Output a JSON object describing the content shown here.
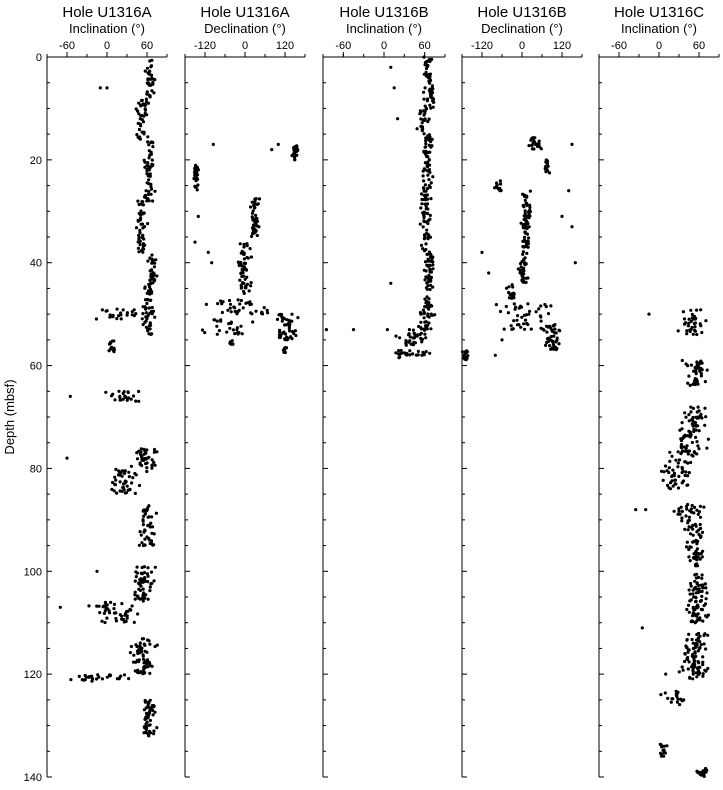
{
  "chart_data": {
    "type": "scatter",
    "ylabel": "Depth (mbsf)",
    "ylim": [
      0,
      140
    ],
    "yticks": [
      0,
      20,
      40,
      60,
      80,
      100,
      120,
      140
    ],
    "yticks_minor_step": 5,
    "panels": [
      {
        "hole": "Hole U1316A",
        "xlabel": "Inclination (°)",
        "xlim": [
          -90,
          90
        ],
        "xticks": [
          -60,
          0,
          60
        ],
        "segments": [
          {
            "d0": 0,
            "d1": 8,
            "center": 65,
            "spread": 10,
            "n": 34
          },
          {
            "d0": 8,
            "d1": 16,
            "center": 52,
            "spread": 12,
            "n": 40
          },
          {
            "d0": 16,
            "d1": 28,
            "center": 64,
            "spread": 11,
            "n": 55
          },
          {
            "d0": 28,
            "d1": 38,
            "center": 52,
            "spread": 12,
            "n": 45
          },
          {
            "d0": 38,
            "d1": 44,
            "center": 68,
            "spread": 10,
            "n": 30
          },
          {
            "d0": 44,
            "d1": 54,
            "center": 62,
            "spread": 12,
            "n": 50
          },
          {
            "d0": 49,
            "d1": 51,
            "center": 20,
            "spread": 55,
            "n": 22
          },
          {
            "d0": 55,
            "d1": 57.5,
            "center": 8,
            "spread": 8,
            "n": 12
          },
          {
            "d0": 65,
            "d1": 67,
            "center": 22,
            "spread": 32,
            "n": 24
          },
          {
            "d0": 76,
            "d1": 80,
            "center": 55,
            "spread": 25,
            "n": 40
          },
          {
            "d0": 80,
            "d1": 85,
            "center": 30,
            "spread": 35,
            "n": 45
          },
          {
            "d0": 87,
            "d1": 95,
            "center": 60,
            "spread": 20,
            "n": 45
          },
          {
            "d0": 99,
            "d1": 106,
            "center": 55,
            "spread": 22,
            "n": 55
          },
          {
            "d0": 106,
            "d1": 110,
            "center": 10,
            "spread": 60,
            "n": 45
          },
          {
            "d0": 113,
            "d1": 120,
            "center": 55,
            "spread": 25,
            "n": 65
          },
          {
            "d0": 120,
            "d1": 121.5,
            "center": -5,
            "spread": 60,
            "n": 30
          },
          {
            "d0": 125,
            "d1": 132,
            "center": 62,
            "spread": 14,
            "n": 50
          }
        ],
        "singles": [
          [
            -10,
            6
          ],
          [
            0,
            6
          ],
          [
            -60,
            78
          ],
          [
            -55,
            66
          ],
          [
            -70,
            107
          ],
          [
            -15,
            100
          ]
        ]
      },
      {
        "hole": "Hole U1316A",
        "xlabel": "Declination (°)",
        "xlim": [
          -180,
          180
        ],
        "xticks": [
          -120,
          0,
          120
        ],
        "segments": [
          {
            "d0": 17,
            "d1": 20,
            "center": 150,
            "spread": 12,
            "n": 22
          },
          {
            "d0": 21,
            "d1": 26,
            "center": -145,
            "spread": 12,
            "n": 28
          },
          {
            "d0": 27,
            "d1": 35,
            "center": 30,
            "spread": 18,
            "n": 45
          },
          {
            "d0": 36,
            "d1": 46,
            "center": 0,
            "spread": 25,
            "n": 55
          },
          {
            "d0": 47,
            "d1": 50,
            "center": 0,
            "spread": 160,
            "n": 35
          },
          {
            "d0": 50,
            "d1": 55,
            "center": 120,
            "spread": 45,
            "n": 45
          },
          {
            "d0": 51,
            "d1": 54,
            "center": -60,
            "spread": 110,
            "n": 25
          },
          {
            "d0": 55,
            "d1": 56,
            "center": -40,
            "spread": 12,
            "n": 6
          },
          {
            "d0": 56.5,
            "d1": 57.5,
            "center": 120,
            "spread": 10,
            "n": 8
          }
        ],
        "singles": [
          [
            -95,
            17
          ],
          [
            -140,
            31
          ],
          [
            -150,
            36
          ],
          [
            -100,
            40
          ],
          [
            -110,
            38
          ],
          [
            100,
            17
          ],
          [
            80,
            18
          ]
        ]
      },
      {
        "hole": "Hole U1316B",
        "xlabel": "Inclination (°)",
        "xlim": [
          -90,
          90
        ],
        "xticks": [
          -60,
          0,
          60
        ],
        "segments": [
          {
            "d0": 0,
            "d1": 5,
            "center": 65,
            "spread": 10,
            "n": 25
          },
          {
            "d0": 5,
            "d1": 10,
            "center": 68,
            "spread": 12,
            "n": 28
          },
          {
            "d0": 10,
            "d1": 15,
            "center": 58,
            "spread": 10,
            "n": 25
          },
          {
            "d0": 15,
            "d1": 25,
            "center": 65,
            "spread": 12,
            "n": 50
          },
          {
            "d0": 25,
            "d1": 38,
            "center": 60,
            "spread": 12,
            "n": 60
          },
          {
            "d0": 38,
            "d1": 48,
            "center": 66,
            "spread": 11,
            "n": 55
          },
          {
            "d0": 48,
            "d1": 53,
            "center": 62,
            "spread": 18,
            "n": 35
          },
          {
            "d0": 53,
            "d1": 58,
            "center": 45,
            "spread": 35,
            "n": 45
          },
          {
            "d0": 57,
            "d1": 58.5,
            "center": 25,
            "spread": 20,
            "n": 12
          }
        ],
        "singles": [
          [
            10,
            2
          ],
          [
            15,
            6
          ],
          [
            20,
            12
          ],
          [
            -85,
            53
          ],
          [
            -45,
            53
          ],
          [
            5,
            53
          ],
          [
            10,
            44
          ]
        ]
      },
      {
        "hole": "Hole U1316B",
        "xlabel": "Declination (°)",
        "xlim": [
          -180,
          180
        ],
        "xticks": [
          -120,
          0,
          120
        ],
        "segments": [
          {
            "d0": 15,
            "d1": 18,
            "center": 40,
            "spread": 30,
            "n": 22
          },
          {
            "d0": 20,
            "d1": 23,
            "center": 75,
            "spread": 12,
            "n": 18
          },
          {
            "d0": 24,
            "d1": 26,
            "center": -70,
            "spread": 15,
            "n": 14
          },
          {
            "d0": 26,
            "d1": 32,
            "center": 15,
            "spread": 18,
            "n": 30
          },
          {
            "d0": 32,
            "d1": 38,
            "center": 10,
            "spread": 18,
            "n": 35
          },
          {
            "d0": 38,
            "d1": 44,
            "center": 5,
            "spread": 20,
            "n": 35
          },
          {
            "d0": 44,
            "d1": 47,
            "center": -30,
            "spread": 20,
            "n": 14
          },
          {
            "d0": 48,
            "d1": 53,
            "center": 10,
            "spread": 120,
            "n": 45
          },
          {
            "d0": 52,
            "d1": 57,
            "center": 90,
            "spread": 30,
            "n": 40
          },
          {
            "d0": 57,
            "d1": 59,
            "center": -170,
            "spread": 12,
            "n": 14
          }
        ],
        "singles": [
          [
            150,
            17
          ],
          [
            140,
            26
          ],
          [
            150,
            33
          ],
          [
            -120,
            38
          ],
          [
            -100,
            42
          ],
          [
            160,
            40
          ],
          [
            120,
            31
          ],
          [
            -60,
            55
          ],
          [
            -80,
            58
          ]
        ]
      },
      {
        "hole": "Hole U1316C",
        "xlabel": "Inclination (°)",
        "xlim": [
          -90,
          90
        ],
        "xticks": [
          -60,
          0,
          60
        ],
        "segments": [
          {
            "d0": 49,
            "d1": 54,
            "center": 50,
            "spread": 28,
            "n": 35
          },
          {
            "d0": 59,
            "d1": 64,
            "center": 55,
            "spread": 25,
            "n": 40
          },
          {
            "d0": 68,
            "d1": 72,
            "center": 55,
            "spread": 25,
            "n": 35
          },
          {
            "d0": 72,
            "d1": 78,
            "center": 45,
            "spread": 32,
            "n": 50
          },
          {
            "d0": 78,
            "d1": 84,
            "center": 25,
            "spread": 35,
            "n": 45
          },
          {
            "d0": 87,
            "d1": 92,
            "center": 45,
            "spread": 30,
            "n": 40
          },
          {
            "d0": 92,
            "d1": 99,
            "center": 55,
            "spread": 22,
            "n": 45
          },
          {
            "d0": 100,
            "d1": 110,
            "center": 58,
            "spread": 22,
            "n": 80
          },
          {
            "d0": 112,
            "d1": 116,
            "center": 55,
            "spread": 25,
            "n": 40
          },
          {
            "d0": 116,
            "d1": 121,
            "center": 52,
            "spread": 28,
            "n": 50
          },
          {
            "d0": 123,
            "d1": 126,
            "center": 25,
            "spread": 25,
            "n": 20
          },
          {
            "d0": 133,
            "d1": 136,
            "center": 5,
            "spread": 10,
            "n": 14
          },
          {
            "d0": 138,
            "d1": 140,
            "center": 65,
            "spread": 15,
            "n": 20
          }
        ],
        "singles": [
          [
            -15,
            50
          ],
          [
            -20,
            88
          ],
          [
            -25,
            111
          ],
          [
            10,
            120
          ],
          [
            -35,
            88
          ]
        ]
      }
    ]
  }
}
